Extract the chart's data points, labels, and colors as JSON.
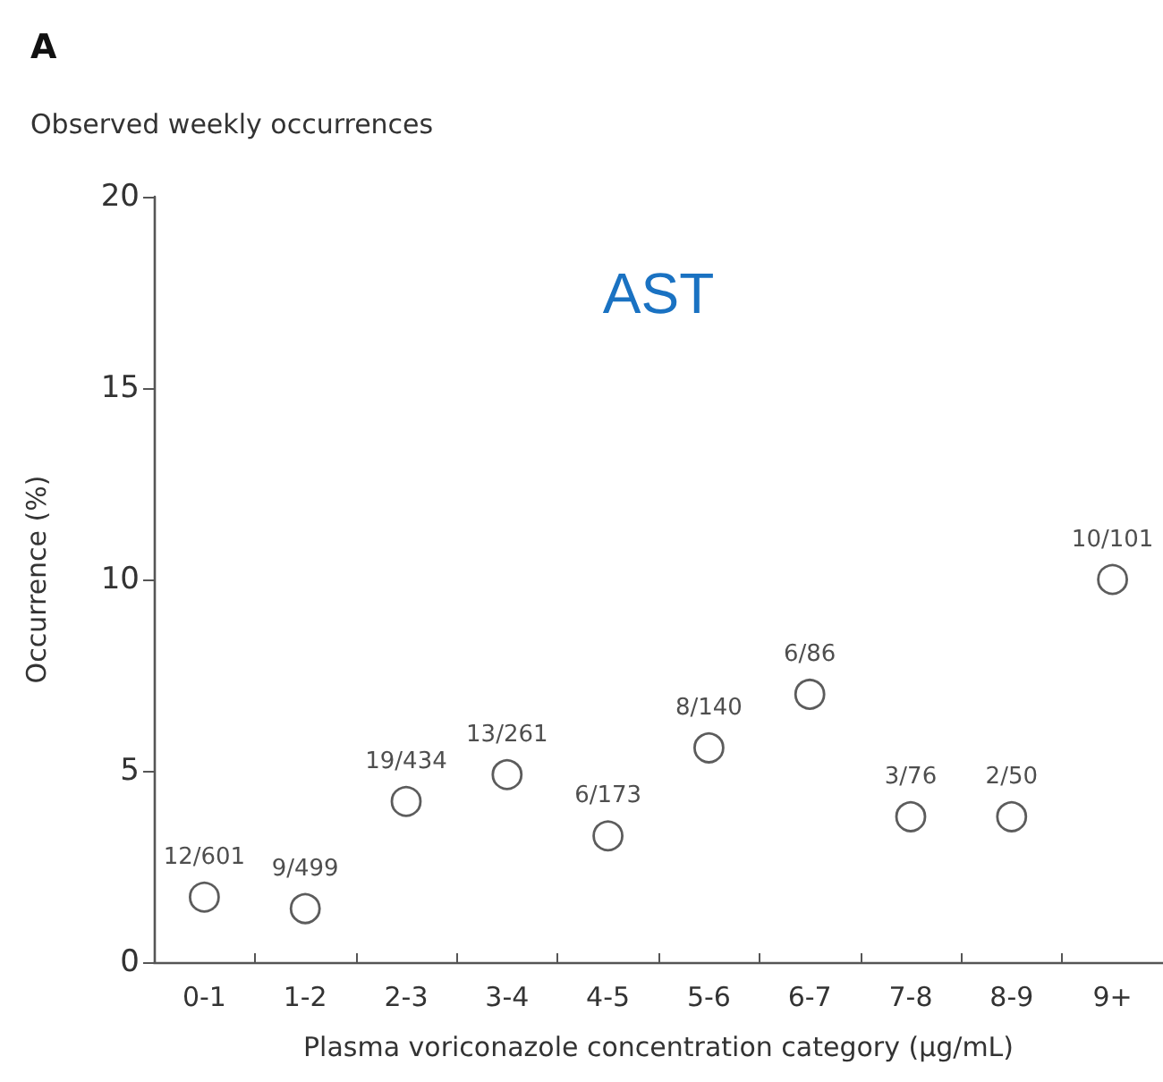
{
  "chart_data": {
    "type": "scatter",
    "title": "A",
    "subtitle": "Observed weekly occurrences",
    "xlabel": "Plasma voriconazole concentration category (µg/mL)",
    "ylabel": "Occurrence (%)",
    "annotations": [
      "AST"
    ],
    "categories": [
      "0-1",
      "1-2",
      "2-3",
      "3-4",
      "4-5",
      "5-6",
      "6-7",
      "7-8",
      "8-9",
      "9+"
    ],
    "values": [
      1.7,
      1.4,
      4.2,
      4.9,
      3.3,
      5.6,
      7.0,
      3.8,
      3.8,
      10.0
    ],
    "value_labels": [
      "12/601",
      "9/499",
      "19/434",
      "13/261",
      "6/173",
      "8/140",
      "6/86",
      "3/76",
      "2/50",
      "10/101"
    ],
    "color": "#333333",
    "marker": "circle",
    "ylim": [
      0,
      20
    ],
    "yticks": [
      0,
      5,
      10,
      15,
      20
    ]
  }
}
